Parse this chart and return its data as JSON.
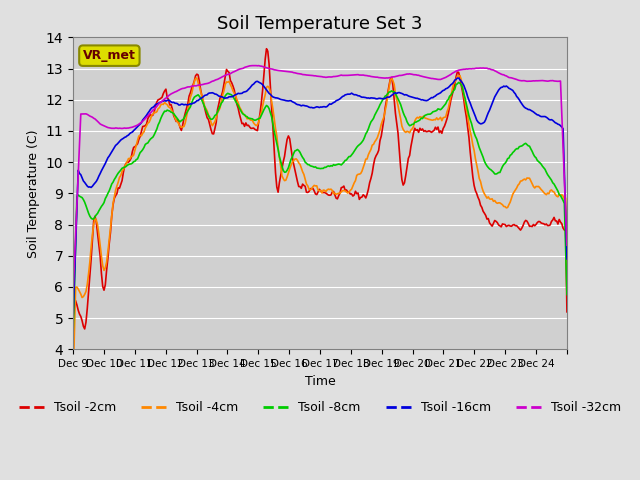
{
  "title": "Soil Temperature Set 3",
  "xlabel": "Time",
  "ylabel": "Soil Temperature (C)",
  "ylim": [
    4.0,
    14.0
  ],
  "yticks": [
    4.0,
    5.0,
    6.0,
    7.0,
    8.0,
    9.0,
    10.0,
    11.0,
    12.0,
    13.0,
    14.0
  ],
  "background_color": "#e0e0e0",
  "plot_bg_color": "#d0d0d0",
  "series_colors": {
    "Tsoil -2cm": "#dd0000",
    "Tsoil -4cm": "#ff8800",
    "Tsoil -8cm": "#00cc00",
    "Tsoil -16cm": "#0000dd",
    "Tsoil -32cm": "#cc00cc"
  },
  "xtick_positions": [
    0,
    1,
    2,
    3,
    4,
    5,
    6,
    7,
    8,
    9,
    10,
    11,
    12,
    13,
    14,
    15,
    16
  ],
  "xtick_labels": [
    "Dec 9",
    "Dec 10",
    "Dec 11",
    "Dec 12",
    "Dec 13",
    "Dec 14",
    "Dec 15",
    "Dec 16",
    "Dec 17",
    "Dec 18",
    "Dec 19",
    "Dec 20",
    "Dec 21",
    "Dec 22",
    "Dec 23",
    "Dec 24",
    ""
  ],
  "xlim": [
    0,
    16
  ],
  "n_points": 384,
  "vr_met_box_color": "#dddd00",
  "vr_met_text_color": "#660000",
  "legend_fontsize": 9,
  "title_fontsize": 13,
  "line_width": 1.2
}
